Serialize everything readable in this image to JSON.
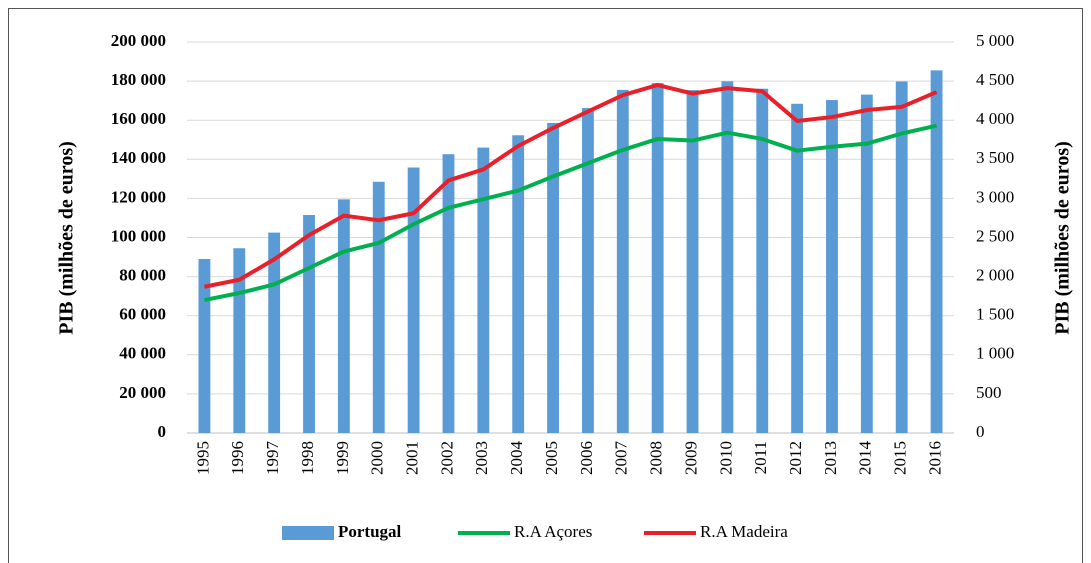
{
  "chart_data": {
    "type": "bar-line",
    "categories": [
      "1995",
      "1996",
      "1997",
      "1998",
      "1999",
      "2000",
      "2001",
      "2002",
      "2003",
      "2004",
      "2005",
      "2006",
      "2007",
      "2008",
      "2009",
      "2010",
      "2011",
      "2012",
      "2013",
      "2014",
      "2015",
      "2016"
    ],
    "series": [
      {
        "name": "Portugal",
        "type": "bar",
        "color": "#5b9bd5",
        "values": [
          89000,
          94500,
          102500,
          111500,
          119500,
          128500,
          135800,
          142600,
          146000,
          152300,
          158600,
          166200,
          175500,
          179000,
          175400,
          179900,
          176100,
          168400,
          170300,
          173100,
          179800,
          185500
        ]
      },
      {
        "name": "R.A Açores",
        "type": "line",
        "axis": "y2",
        "color": "#00b050",
        "values": [
          1700,
          1790,
          1900,
          2110,
          2320,
          2430,
          2670,
          2880,
          2990,
          3100,
          3280,
          3450,
          3620,
          3760,
          3740,
          3840,
          3760,
          3610,
          3660,
          3700,
          3830,
          3930
        ]
      },
      {
        "name": "R.A Madeira",
        "type": "line",
        "axis": "y2",
        "color": "#e8202a",
        "values": [
          1870,
          1960,
          2220,
          2530,
          2780,
          2720,
          2810,
          3230,
          3370,
          3670,
          3900,
          4110,
          4320,
          4450,
          4340,
          4410,
          4370,
          3990,
          4040,
          4130,
          4170,
          4360
        ]
      }
    ],
    "ylabel": "PIB (milhões de euros)",
    "y2label": "PIB (milhões de euros)",
    "ylim": [
      0,
      200000
    ],
    "yticks": [
      0,
      {
        "value": 20000,
        "label": "20 000"
      },
      {
        "value": 40000,
        "label": "40 000"
      },
      {
        "value": 60000,
        "label": "60 000"
      },
      {
        "value": 80000,
        "label": "80 000"
      },
      {
        "value": 100000,
        "label": "100 000"
      },
      {
        "value": 120000,
        "label": "120 000"
      },
      {
        "value": 140000,
        "label": "140 000"
      },
      {
        "value": 160000,
        "label": "160 000"
      },
      {
        "value": 180000,
        "label": "180 000"
      },
      {
        "value": 200000,
        "label": "200 000"
      }
    ],
    "y2lim": [
      0,
      5000
    ],
    "y2ticks": [
      0,
      500,
      {
        "value": 1000,
        "label": "1 000"
      },
      {
        "value": 1500,
        "label": "1 500"
      },
      {
        "value": 2000,
        "label": "2 000"
      },
      {
        "value": 2500,
        "label": "2 500"
      },
      {
        "value": 3000,
        "label": "3 000"
      },
      {
        "value": 3500,
        "label": "3 500"
      },
      {
        "value": 4000,
        "label": "4 000"
      },
      {
        "value": 4500,
        "label": "4 500"
      },
      {
        "value": 5000,
        "label": "5 000"
      }
    ],
    "grid": true,
    "legend": "bottom"
  }
}
